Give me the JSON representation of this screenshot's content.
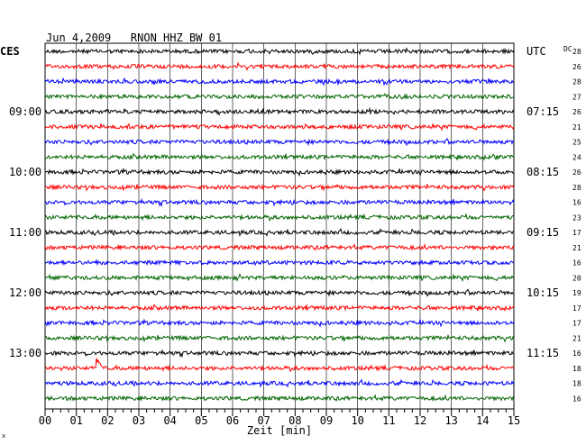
{
  "chart_data": {
    "type": "line",
    "title": "Jun 4,2009   RNON HHZ BW 01",
    "left_timezone": "CES",
    "right_timezone": "UTC",
    "dc_label": "DC",
    "xlabel": "Zeit [min]",
    "xlim": [
      0,
      15
    ],
    "x_ticks": [
      "00",
      "01",
      "02",
      "03",
      "04",
      "05",
      "06",
      "07",
      "08",
      "09",
      "10",
      "11",
      "12",
      "13",
      "14",
      "15"
    ],
    "left_time_labels": [
      {
        "text": "09:00",
        "row": 4
      },
      {
        "text": "10:00",
        "row": 8
      },
      {
        "text": "11:00",
        "row": 12
      },
      {
        "text": "12:00",
        "row": 16
      },
      {
        "text": "13:00",
        "row": 20
      }
    ],
    "right_time_labels": [
      {
        "text": "UTC",
        "row": 0
      },
      {
        "text": "07:15",
        "row": 4
      },
      {
        "text": "08:15",
        "row": 8
      },
      {
        "text": "09:15",
        "row": 12
      },
      {
        "text": "10:15",
        "row": 16
      },
      {
        "text": "11:15",
        "row": 20
      }
    ],
    "dc_offsets": [
      "28",
      "26",
      "28",
      "27",
      "26",
      "21",
      "25",
      "24",
      "26",
      "28",
      "16",
      "23",
      "17",
      "21",
      "16",
      "20",
      "19",
      "17",
      "17",
      "21",
      "16",
      "18",
      "18",
      "16"
    ],
    "trace_colors": [
      "#000000",
      "#ff0000",
      "#0000ff",
      "#006400"
    ],
    "event": {
      "row": 21,
      "minute": 1.65
    },
    "corner_mark": "x",
    "grid": true
  }
}
